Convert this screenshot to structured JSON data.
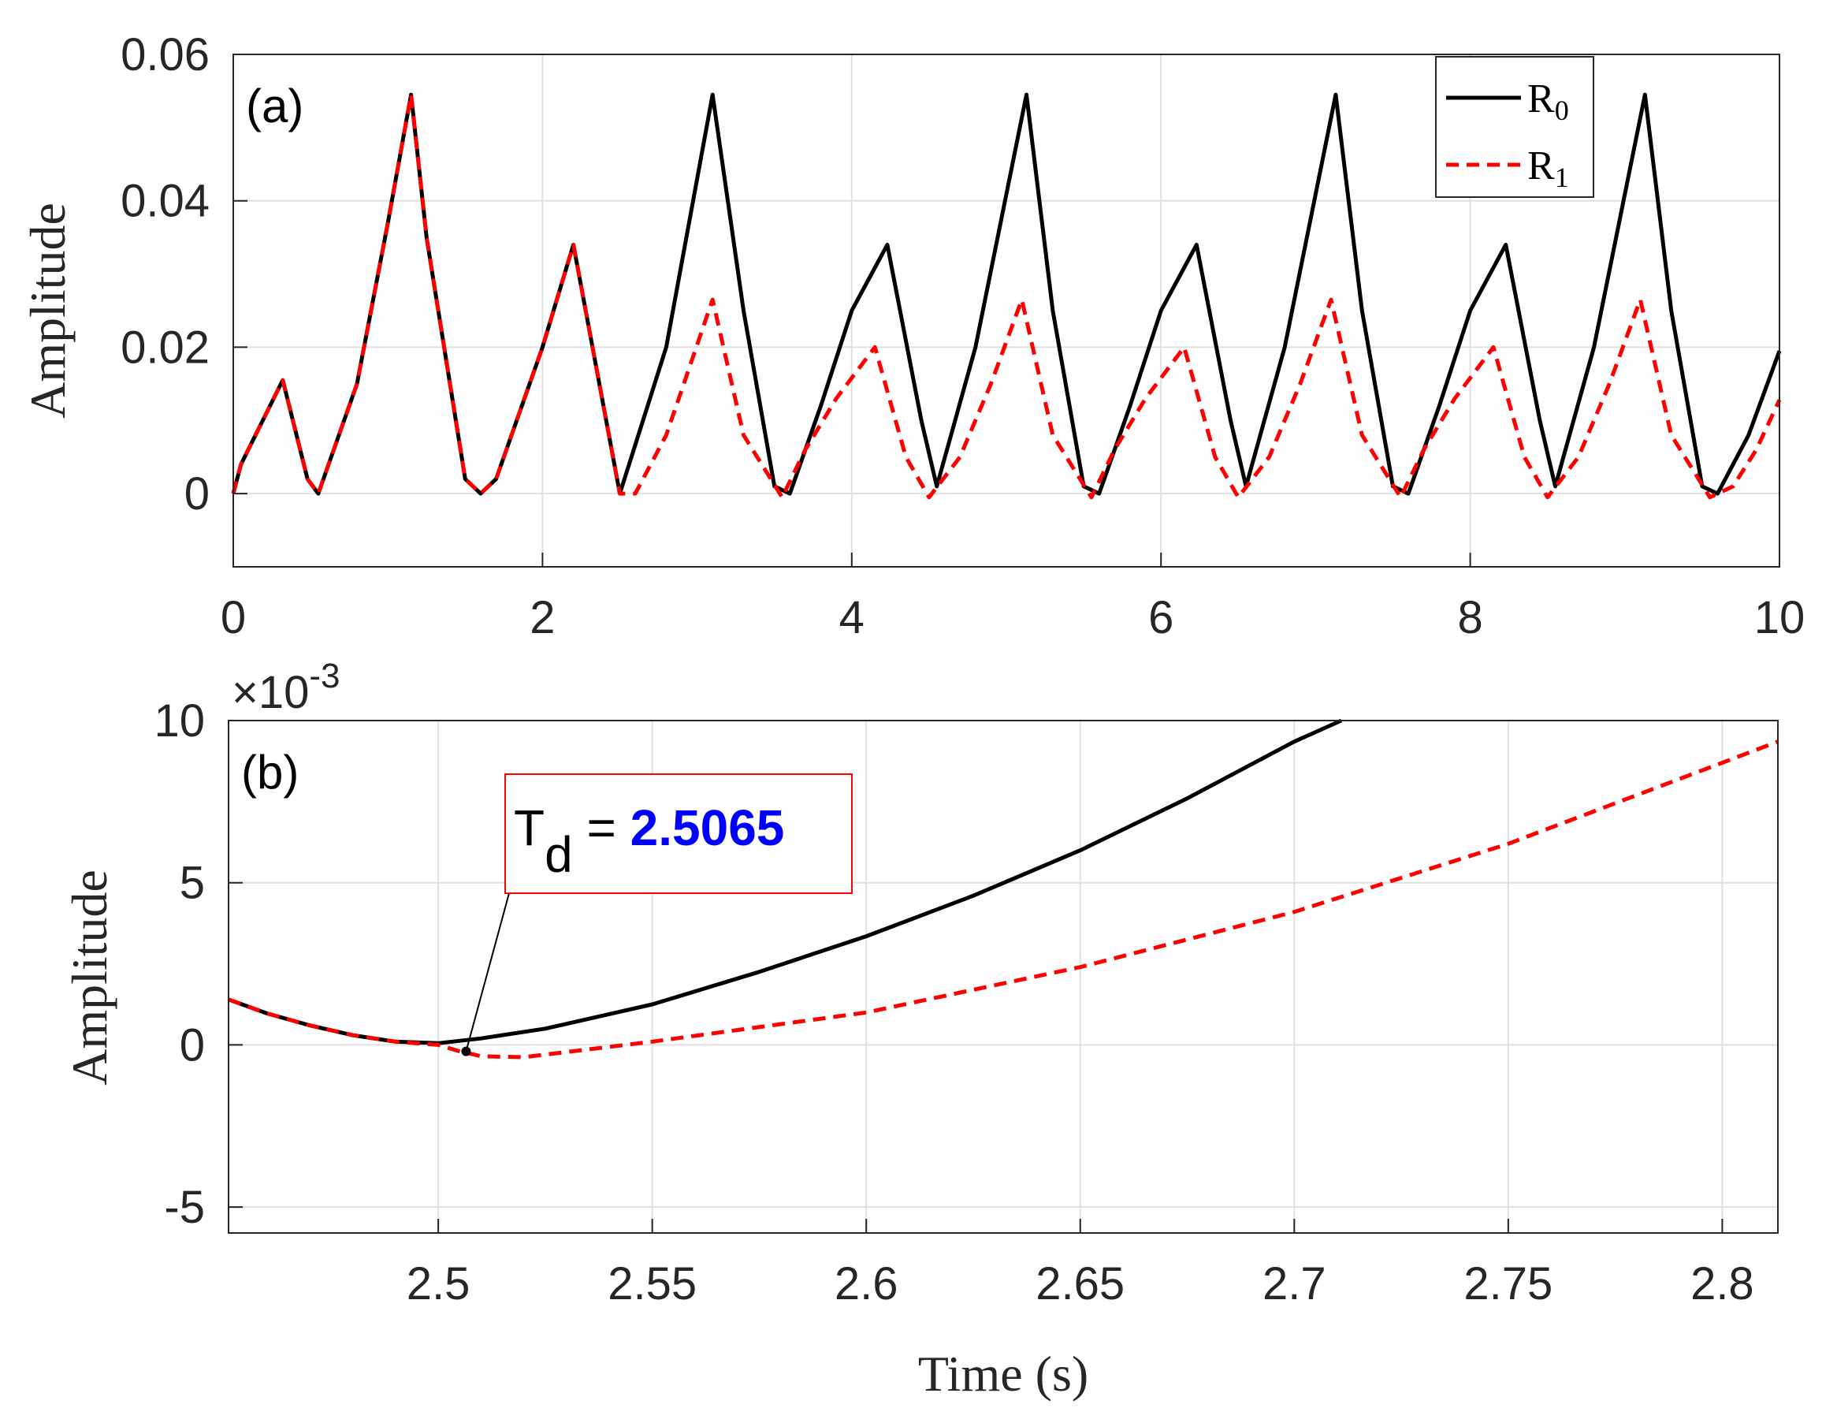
{
  "chart_data": [
    {
      "type": "line",
      "panel_label": "(a)",
      "xlabel": "",
      "ylabel": "Amplitude",
      "xlim": [
        0,
        10
      ],
      "ylim": [
        -0.01,
        0.06
      ],
      "xticks": [
        "0",
        "2",
        "4",
        "6",
        "8",
        "10"
      ],
      "yticks": [
        "0",
        "0.02",
        "0.04",
        "0.06"
      ],
      "grid": true,
      "legend_position": "top-right",
      "series": [
        {
          "name": "R0",
          "color": "#000000",
          "style": "solid",
          "x": [
            0,
            0.05,
            0.32,
            0.48,
            0.55,
            0.8,
            1.0,
            1.15,
            1.25,
            1.5,
            1.6,
            1.7,
            2.0,
            2.2,
            2.5,
            2.8,
            3.1,
            3.3,
            3.5,
            3.6,
            3.8,
            4.0,
            4.23,
            4.45,
            4.55,
            4.8,
            5.13,
            5.3,
            5.5,
            5.6,
            5.8,
            6.0,
            6.23,
            6.45,
            6.55,
            6.8,
            7.13,
            7.3,
            7.5,
            7.6,
            7.8,
            8.0,
            8.23,
            8.45,
            8.55,
            8.8,
            9.13,
            9.3,
            9.5,
            9.6,
            9.8,
            10.0
          ],
          "y": [
            0,
            0.004,
            0.0155,
            0.002,
            0,
            0.015,
            0.037,
            0.0545,
            0.035,
            0.002,
            0,
            0.002,
            0.02,
            0.034,
            0,
            0.02,
            0.0545,
            0.025,
            0.001,
            0,
            0.012,
            0.025,
            0.034,
            0.01,
            0.001,
            0.02,
            0.0545,
            0.025,
            0.001,
            0,
            0.012,
            0.025,
            0.034,
            0.01,
            0.001,
            0.02,
            0.0545,
            0.025,
            0.001,
            0,
            0.012,
            0.025,
            0.034,
            0.01,
            0.001,
            0.02,
            0.0545,
            0.025,
            0.001,
            0,
            0.008,
            0.0195
          ]
        },
        {
          "name": "R1",
          "color": "#ff0000",
          "style": "dashed",
          "x": [
            0,
            0.05,
            0.32,
            0.48,
            0.55,
            0.8,
            1.0,
            1.15,
            1.25,
            1.5,
            1.6,
            1.7,
            2.0,
            2.2,
            2.5,
            2.6,
            2.8,
            3.1,
            3.3,
            3.55,
            3.7,
            3.9,
            4.15,
            4.35,
            4.5,
            4.7,
            4.9,
            5.1,
            5.3,
            5.55,
            5.7,
            5.9,
            6.15,
            6.35,
            6.5,
            6.7,
            6.9,
            7.1,
            7.3,
            7.55,
            7.7,
            7.9,
            8.15,
            8.35,
            8.5,
            8.7,
            8.9,
            9.1,
            9.3,
            9.55,
            9.7,
            9.85,
            10.0
          ],
          "y": [
            0,
            0.004,
            0.0155,
            0.002,
            0,
            0.015,
            0.037,
            0.0545,
            0.035,
            0.002,
            0,
            0.002,
            0.02,
            0.034,
            0,
            0,
            0.008,
            0.0265,
            0.008,
            -0.0005,
            0.006,
            0.013,
            0.02,
            0.005,
            -0.0005,
            0.005,
            0.015,
            0.0265,
            0.008,
            -0.0005,
            0.006,
            0.013,
            0.02,
            0.005,
            -0.0005,
            0.005,
            0.015,
            0.0265,
            0.008,
            -0.0005,
            0.006,
            0.013,
            0.02,
            0.005,
            -0.0005,
            0.005,
            0.015,
            0.0265,
            0.008,
            -0.0005,
            0.001,
            0.006,
            0.0128
          ]
        }
      ]
    },
    {
      "type": "line",
      "panel_label": "(b)",
      "xlabel": "Time (s)",
      "ylabel": "Amplitude",
      "y_exponent_label": "×10",
      "y_exponent_power": "-3",
      "xlim": [
        2.451,
        2.813
      ],
      "ylim": [
        -5.8,
        10
      ],
      "xticks": [
        "2.5",
        "2.55",
        "2.6",
        "2.65",
        "2.7",
        "2.75",
        "2.8"
      ],
      "yticks": [
        "-5",
        "0",
        "5",
        "10"
      ],
      "grid": true,
      "series": [
        {
          "name": "R0",
          "color": "#000000",
          "style": "solid",
          "x": [
            2.451,
            2.46,
            2.47,
            2.48,
            2.49,
            2.5,
            2.51,
            2.525,
            2.55,
            2.575,
            2.6,
            2.625,
            2.65,
            2.675,
            2.7,
            2.711
          ],
          "y": [
            1.4,
            0.97,
            0.6,
            0.3,
            0.1,
            0.05,
            0.2,
            0.5,
            1.25,
            2.25,
            3.35,
            4.6,
            6.0,
            7.6,
            9.35,
            10.0
          ]
        },
        {
          "name": "R1",
          "color": "#ff0000",
          "style": "dashed",
          "x": [
            2.451,
            2.46,
            2.47,
            2.48,
            2.49,
            2.5,
            2.505,
            2.51,
            2.52,
            2.55,
            2.6,
            2.65,
            2.7,
            2.75,
            2.8,
            2.813
          ],
          "y": [
            1.4,
            0.97,
            0.6,
            0.3,
            0.1,
            0.0,
            -0.2,
            -0.35,
            -0.38,
            0.1,
            1.0,
            2.4,
            4.1,
            6.2,
            8.7,
            9.35
          ]
        }
      ],
      "annotation": {
        "label": "T",
        "subscript": "d",
        "equals": " = ",
        "value": "2.5065",
        "value_color": "#0000ff",
        "border_color": "#ff0000",
        "point_x": 2.5065,
        "point_y": -0.2
      }
    }
  ],
  "legend": {
    "items": [
      {
        "label": "R",
        "sub": "0",
        "color": "#000000",
        "style": "solid"
      },
      {
        "label": "R",
        "sub": "1",
        "color": "#ff0000",
        "style": "dashed"
      }
    ]
  }
}
